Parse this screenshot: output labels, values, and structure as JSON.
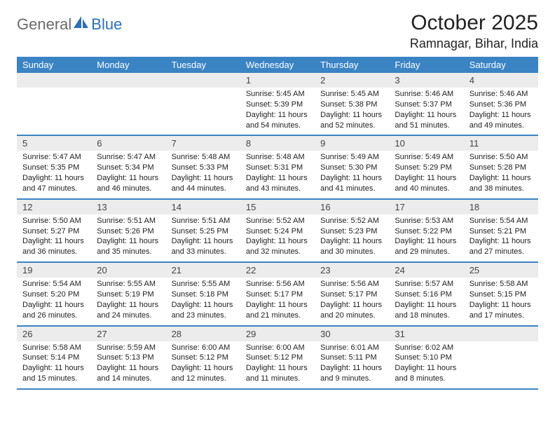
{
  "brand": {
    "part1": "General",
    "part2": "Blue"
  },
  "title": "October 2025",
  "location": "Ramnagar, Bihar, India",
  "colors": {
    "accent": "#3b84c4",
    "daynum_bg": "#ececec",
    "text": "#1a1a1a",
    "logo_gray": "#6a6a6a",
    "logo_blue": "#2b70b8",
    "background": "#ffffff"
  },
  "day_headers": [
    "Sunday",
    "Monday",
    "Tuesday",
    "Wednesday",
    "Thursday",
    "Friday",
    "Saturday"
  ],
  "weeks": [
    [
      {
        "num": "",
        "sunrise": "",
        "sunset": "",
        "daylight": ""
      },
      {
        "num": "",
        "sunrise": "",
        "sunset": "",
        "daylight": ""
      },
      {
        "num": "",
        "sunrise": "",
        "sunset": "",
        "daylight": ""
      },
      {
        "num": "1",
        "sunrise": "Sunrise: 5:45 AM",
        "sunset": "Sunset: 5:39 PM",
        "daylight": "Daylight: 11 hours and 54 minutes."
      },
      {
        "num": "2",
        "sunrise": "Sunrise: 5:45 AM",
        "sunset": "Sunset: 5:38 PM",
        "daylight": "Daylight: 11 hours and 52 minutes."
      },
      {
        "num": "3",
        "sunrise": "Sunrise: 5:46 AM",
        "sunset": "Sunset: 5:37 PM",
        "daylight": "Daylight: 11 hours and 51 minutes."
      },
      {
        "num": "4",
        "sunrise": "Sunrise: 5:46 AM",
        "sunset": "Sunset: 5:36 PM",
        "daylight": "Daylight: 11 hours and 49 minutes."
      }
    ],
    [
      {
        "num": "5",
        "sunrise": "Sunrise: 5:47 AM",
        "sunset": "Sunset: 5:35 PM",
        "daylight": "Daylight: 11 hours and 47 minutes."
      },
      {
        "num": "6",
        "sunrise": "Sunrise: 5:47 AM",
        "sunset": "Sunset: 5:34 PM",
        "daylight": "Daylight: 11 hours and 46 minutes."
      },
      {
        "num": "7",
        "sunrise": "Sunrise: 5:48 AM",
        "sunset": "Sunset: 5:33 PM",
        "daylight": "Daylight: 11 hours and 44 minutes."
      },
      {
        "num": "8",
        "sunrise": "Sunrise: 5:48 AM",
        "sunset": "Sunset: 5:31 PM",
        "daylight": "Daylight: 11 hours and 43 minutes."
      },
      {
        "num": "9",
        "sunrise": "Sunrise: 5:49 AM",
        "sunset": "Sunset: 5:30 PM",
        "daylight": "Daylight: 11 hours and 41 minutes."
      },
      {
        "num": "10",
        "sunrise": "Sunrise: 5:49 AM",
        "sunset": "Sunset: 5:29 PM",
        "daylight": "Daylight: 11 hours and 40 minutes."
      },
      {
        "num": "11",
        "sunrise": "Sunrise: 5:50 AM",
        "sunset": "Sunset: 5:28 PM",
        "daylight": "Daylight: 11 hours and 38 minutes."
      }
    ],
    [
      {
        "num": "12",
        "sunrise": "Sunrise: 5:50 AM",
        "sunset": "Sunset: 5:27 PM",
        "daylight": "Daylight: 11 hours and 36 minutes."
      },
      {
        "num": "13",
        "sunrise": "Sunrise: 5:51 AM",
        "sunset": "Sunset: 5:26 PM",
        "daylight": "Daylight: 11 hours and 35 minutes."
      },
      {
        "num": "14",
        "sunrise": "Sunrise: 5:51 AM",
        "sunset": "Sunset: 5:25 PM",
        "daylight": "Daylight: 11 hours and 33 minutes."
      },
      {
        "num": "15",
        "sunrise": "Sunrise: 5:52 AM",
        "sunset": "Sunset: 5:24 PM",
        "daylight": "Daylight: 11 hours and 32 minutes."
      },
      {
        "num": "16",
        "sunrise": "Sunrise: 5:52 AM",
        "sunset": "Sunset: 5:23 PM",
        "daylight": "Daylight: 11 hours and 30 minutes."
      },
      {
        "num": "17",
        "sunrise": "Sunrise: 5:53 AM",
        "sunset": "Sunset: 5:22 PM",
        "daylight": "Daylight: 11 hours and 29 minutes."
      },
      {
        "num": "18",
        "sunrise": "Sunrise: 5:54 AM",
        "sunset": "Sunset: 5:21 PM",
        "daylight": "Daylight: 11 hours and 27 minutes."
      }
    ],
    [
      {
        "num": "19",
        "sunrise": "Sunrise: 5:54 AM",
        "sunset": "Sunset: 5:20 PM",
        "daylight": "Daylight: 11 hours and 26 minutes."
      },
      {
        "num": "20",
        "sunrise": "Sunrise: 5:55 AM",
        "sunset": "Sunset: 5:19 PM",
        "daylight": "Daylight: 11 hours and 24 minutes."
      },
      {
        "num": "21",
        "sunrise": "Sunrise: 5:55 AM",
        "sunset": "Sunset: 5:18 PM",
        "daylight": "Daylight: 11 hours and 23 minutes."
      },
      {
        "num": "22",
        "sunrise": "Sunrise: 5:56 AM",
        "sunset": "Sunset: 5:17 PM",
        "daylight": "Daylight: 11 hours and 21 minutes."
      },
      {
        "num": "23",
        "sunrise": "Sunrise: 5:56 AM",
        "sunset": "Sunset: 5:17 PM",
        "daylight": "Daylight: 11 hours and 20 minutes."
      },
      {
        "num": "24",
        "sunrise": "Sunrise: 5:57 AM",
        "sunset": "Sunset: 5:16 PM",
        "daylight": "Daylight: 11 hours and 18 minutes."
      },
      {
        "num": "25",
        "sunrise": "Sunrise: 5:58 AM",
        "sunset": "Sunset: 5:15 PM",
        "daylight": "Daylight: 11 hours and 17 minutes."
      }
    ],
    [
      {
        "num": "26",
        "sunrise": "Sunrise: 5:58 AM",
        "sunset": "Sunset: 5:14 PM",
        "daylight": "Daylight: 11 hours and 15 minutes."
      },
      {
        "num": "27",
        "sunrise": "Sunrise: 5:59 AM",
        "sunset": "Sunset: 5:13 PM",
        "daylight": "Daylight: 11 hours and 14 minutes."
      },
      {
        "num": "28",
        "sunrise": "Sunrise: 6:00 AM",
        "sunset": "Sunset: 5:12 PM",
        "daylight": "Daylight: 11 hours and 12 minutes."
      },
      {
        "num": "29",
        "sunrise": "Sunrise: 6:00 AM",
        "sunset": "Sunset: 5:12 PM",
        "daylight": "Daylight: 11 hours and 11 minutes."
      },
      {
        "num": "30",
        "sunrise": "Sunrise: 6:01 AM",
        "sunset": "Sunset: 5:11 PM",
        "daylight": "Daylight: 11 hours and 9 minutes."
      },
      {
        "num": "31",
        "sunrise": "Sunrise: 6:02 AM",
        "sunset": "Sunset: 5:10 PM",
        "daylight": "Daylight: 11 hours and 8 minutes."
      },
      {
        "num": "",
        "sunrise": "",
        "sunset": "",
        "daylight": ""
      }
    ]
  ]
}
